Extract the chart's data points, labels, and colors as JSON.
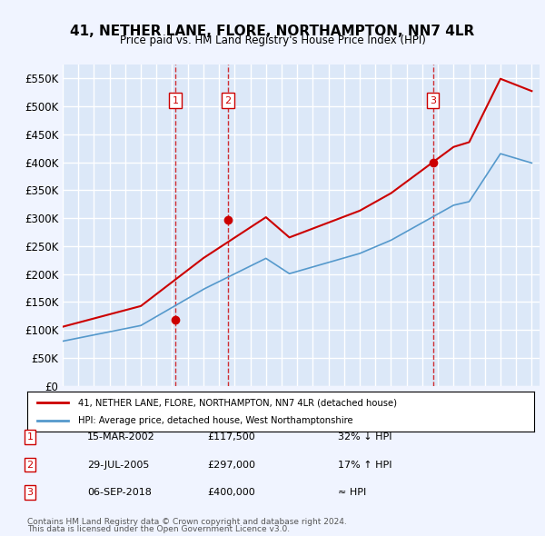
{
  "title": "41, NETHER LANE, FLORE, NORTHAMPTON, NN7 4LR",
  "subtitle": "Price paid vs. HM Land Registry's House Price Index (HPI)",
  "ylabel_ticks": [
    "£0",
    "£50K",
    "£100K",
    "£150K",
    "£200K",
    "£250K",
    "£300K",
    "£350K",
    "£400K",
    "£450K",
    "£500K",
    "£550K"
  ],
  "ylabel_values": [
    0,
    50000,
    100000,
    150000,
    200000,
    250000,
    300000,
    350000,
    400000,
    450000,
    500000,
    550000
  ],
  "ylim": [
    0,
    575000
  ],
  "xlim_start": 1995.0,
  "xlim_end": 2025.5,
  "background_color": "#f0f4ff",
  "plot_bg_color": "#dce8f8",
  "grid_color": "#ffffff",
  "transactions": [
    {
      "date": 2002.21,
      "price": 117500,
      "label": "1"
    },
    {
      "date": 2005.57,
      "price": 297000,
      "label": "2"
    },
    {
      "date": 2018.68,
      "price": 400000,
      "label": "3"
    }
  ],
  "transaction_dates_str": [
    "15-MAR-2002",
    "29-JUL-2005",
    "06-SEP-2018"
  ],
  "transaction_prices_str": [
    "£117,500",
    "£297,000",
    "£400,000"
  ],
  "transaction_notes": [
    "32% ↓ HPI",
    "17% ↑ HPI",
    "≈ HPI"
  ],
  "legend_line1": "41, NETHER LANE, FLORE, NORTHAMPTON, NN7 4LR (detached house)",
  "legend_line2": "HPI: Average price, detached house, West Northamptonshire",
  "footer1": "Contains HM Land Registry data © Crown copyright and database right 2024.",
  "footer2": "This data is licensed under the Open Government Licence v3.0.",
  "red_color": "#cc0000",
  "blue_color": "#5599cc",
  "hpi_base_value": 80000
}
